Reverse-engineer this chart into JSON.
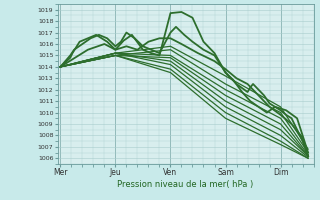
{
  "xlabel": "Pression niveau de la mer( hPa )",
  "bg_color": "#c8eaea",
  "plot_bg": "#d8eeee",
  "grid_color": "#a8cccc",
  "line_color": "#2d6e2d",
  "ylim": [
    1005.5,
    1019.5
  ],
  "yticks": [
    1006,
    1007,
    1008,
    1009,
    1010,
    1011,
    1012,
    1013,
    1014,
    1015,
    1016,
    1017,
    1018,
    1019
  ],
  "xtick_labels": [
    "Mer",
    "Jeu",
    "Ven",
    "Sam",
    "Dim"
  ],
  "xtick_pos": [
    0.0,
    1.0,
    2.0,
    3.0,
    4.0
  ],
  "xlim": [
    -0.05,
    4.6
  ],
  "lines": [
    {
      "x": [
        0.0,
        0.18,
        0.22,
        0.35,
        0.5,
        0.65,
        0.75,
        0.85,
        1.0,
        1.15,
        1.3,
        1.5,
        1.65,
        1.8,
        2.0,
        2.2,
        2.4,
        2.6,
        2.8,
        3.0,
        3.2,
        3.4,
        3.45,
        3.5,
        3.6,
        3.7,
        3.8,
        3.9,
        4.0,
        4.1,
        4.2,
        4.3,
        4.4,
        4.5
      ],
      "y": [
        1014.0,
        1014.8,
        1015.2,
        1016.2,
        1016.5,
        1016.8,
        1016.5,
        1016.2,
        1015.5,
        1016.3,
        1016.8,
        1015.5,
        1015.2,
        1015.0,
        1018.7,
        1018.8,
        1018.3,
        1016.2,
        1015.2,
        1013.5,
        1012.5,
        1011.8,
        1012.2,
        1012.5,
        1012.0,
        1011.5,
        1010.8,
        1010.5,
        1010.2,
        1009.8,
        1009.5,
        1008.5,
        1007.5,
        1006.2
      ],
      "lw": 1.3
    },
    {
      "x": [
        0.0,
        0.18,
        0.25,
        0.4,
        0.55,
        0.7,
        0.85,
        1.0,
        1.1,
        1.2,
        1.35,
        1.5,
        1.65,
        1.8,
        2.0,
        2.1,
        2.25,
        2.4,
        2.6,
        2.8,
        3.0,
        3.15,
        3.3,
        3.45,
        3.6,
        3.75,
        3.9,
        4.1,
        4.3,
        4.5
      ],
      "y": [
        1014.0,
        1015.0,
        1015.5,
        1016.0,
        1016.5,
        1016.8,
        1016.5,
        1015.8,
        1016.2,
        1017.0,
        1016.5,
        1015.8,
        1015.5,
        1015.2,
        1017.0,
        1017.5,
        1016.8,
        1016.2,
        1015.5,
        1015.0,
        1013.5,
        1012.8,
        1011.8,
        1011.0,
        1010.5,
        1010.0,
        1010.5,
        1010.2,
        1009.5,
        1006.5
      ],
      "lw": 1.3
    },
    {
      "x": [
        0.0,
        1.0,
        2.0,
        3.0,
        4.0,
        4.5
      ],
      "y": [
        1014.0,
        1015.2,
        1015.8,
        1013.2,
        1010.5,
        1006.8
      ],
      "lw": 0.9
    },
    {
      "x": [
        0.0,
        1.0,
        2.0,
        3.0,
        4.0,
        4.5
      ],
      "y": [
        1014.0,
        1015.0,
        1015.5,
        1012.5,
        1010.0,
        1006.5
      ],
      "lw": 0.9
    },
    {
      "x": [
        0.0,
        1.0,
        2.0,
        3.0,
        4.0,
        4.5
      ],
      "y": [
        1014.0,
        1015.2,
        1015.0,
        1012.0,
        1009.5,
        1006.3
      ],
      "lw": 0.9
    },
    {
      "x": [
        0.0,
        1.0,
        2.0,
        3.0,
        4.0,
        4.5
      ],
      "y": [
        1014.0,
        1015.0,
        1014.8,
        1011.5,
        1009.0,
        1006.2
      ],
      "lw": 0.9
    },
    {
      "x": [
        0.0,
        1.0,
        2.0,
        3.0,
        4.0,
        4.5
      ],
      "y": [
        1014.0,
        1015.2,
        1014.5,
        1011.0,
        1008.5,
        1006.2
      ],
      "lw": 0.9
    },
    {
      "x": [
        0.0,
        1.0,
        2.0,
        3.0,
        4.0,
        4.5
      ],
      "y": [
        1014.0,
        1015.2,
        1014.2,
        1010.5,
        1008.0,
        1006.1
      ],
      "lw": 0.9
    },
    {
      "x": [
        0.0,
        1.0,
        2.0,
        3.0,
        4.0,
        4.5
      ],
      "y": [
        1014.0,
        1015.0,
        1013.8,
        1010.0,
        1007.5,
        1006.0
      ],
      "lw": 0.9
    },
    {
      "x": [
        0.0,
        1.0,
        2.0,
        3.0,
        4.0,
        4.5
      ],
      "y": [
        1014.0,
        1015.0,
        1013.5,
        1009.5,
        1007.2,
        1006.0
      ],
      "lw": 0.9
    },
    {
      "x": [
        0.0,
        0.5,
        0.8,
        1.0,
        1.2,
        1.4,
        1.6,
        1.8,
        2.0,
        2.2,
        2.5,
        2.8,
        3.0,
        3.2,
        3.4,
        3.6,
        3.8,
        4.0,
        4.2,
        4.4,
        4.5
      ],
      "y": [
        1014.0,
        1015.5,
        1016.0,
        1015.5,
        1015.8,
        1015.5,
        1016.2,
        1016.5,
        1016.5,
        1016.0,
        1015.2,
        1014.5,
        1013.8,
        1013.0,
        1012.5,
        1011.5,
        1010.5,
        1009.8,
        1009.0,
        1007.8,
        1006.2
      ],
      "lw": 1.3
    }
  ]
}
